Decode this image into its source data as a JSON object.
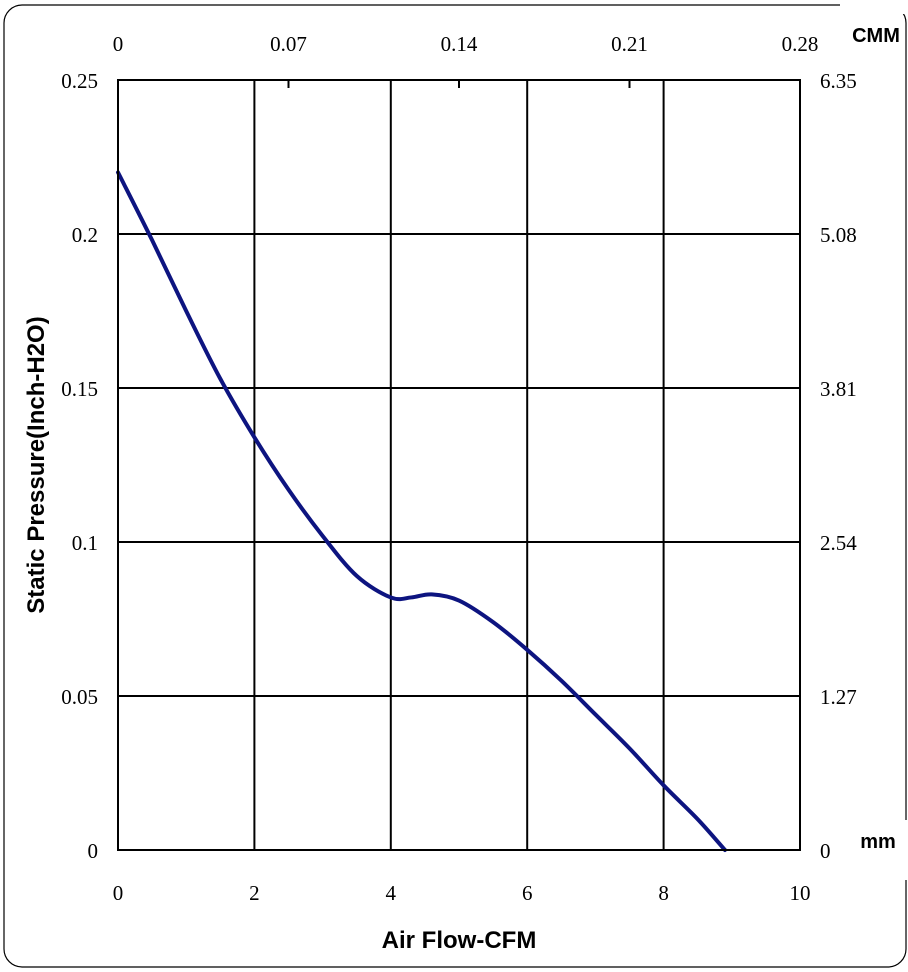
{
  "chart_data": {
    "type": "line",
    "xlabel": "Air Flow-CFM",
    "ylabel": "Static Pressure(Inch-H2O)",
    "top_axis_unit": "CMM",
    "right_axis_unit": "mm",
    "xlim": [
      0,
      10
    ],
    "ylim": [
      0,
      0.25
    ],
    "grid": true,
    "x_ticks": [
      "0",
      "2",
      "4",
      "6",
      "8",
      "10"
    ],
    "y_ticks": [
      "0",
      "0.05",
      "0.1",
      "0.15",
      "0.2",
      "0.25"
    ],
    "top_ticks": [
      "0",
      "0.07",
      "0.14",
      "0.21",
      "0.28"
    ],
    "right_ticks": [
      "0",
      "1.27",
      "2.54",
      "3.81",
      "5.08",
      "6.35"
    ],
    "series": [
      {
        "color": "#0d1480",
        "x": [
          0,
          0.5,
          1,
          1.5,
          2,
          2.5,
          3,
          3.5,
          4,
          4.3,
          4.6,
          5,
          5.5,
          6,
          6.5,
          7,
          7.5,
          8,
          8.5,
          8.9
        ],
        "y": [
          0.22,
          0.198,
          0.175,
          0.153,
          0.134,
          0.117,
          0.102,
          0.089,
          0.082,
          0.082,
          0.083,
          0.081,
          0.074,
          0.065,
          0.055,
          0.044,
          0.033,
          0.021,
          0.01,
          0.0
        ]
      }
    ]
  }
}
